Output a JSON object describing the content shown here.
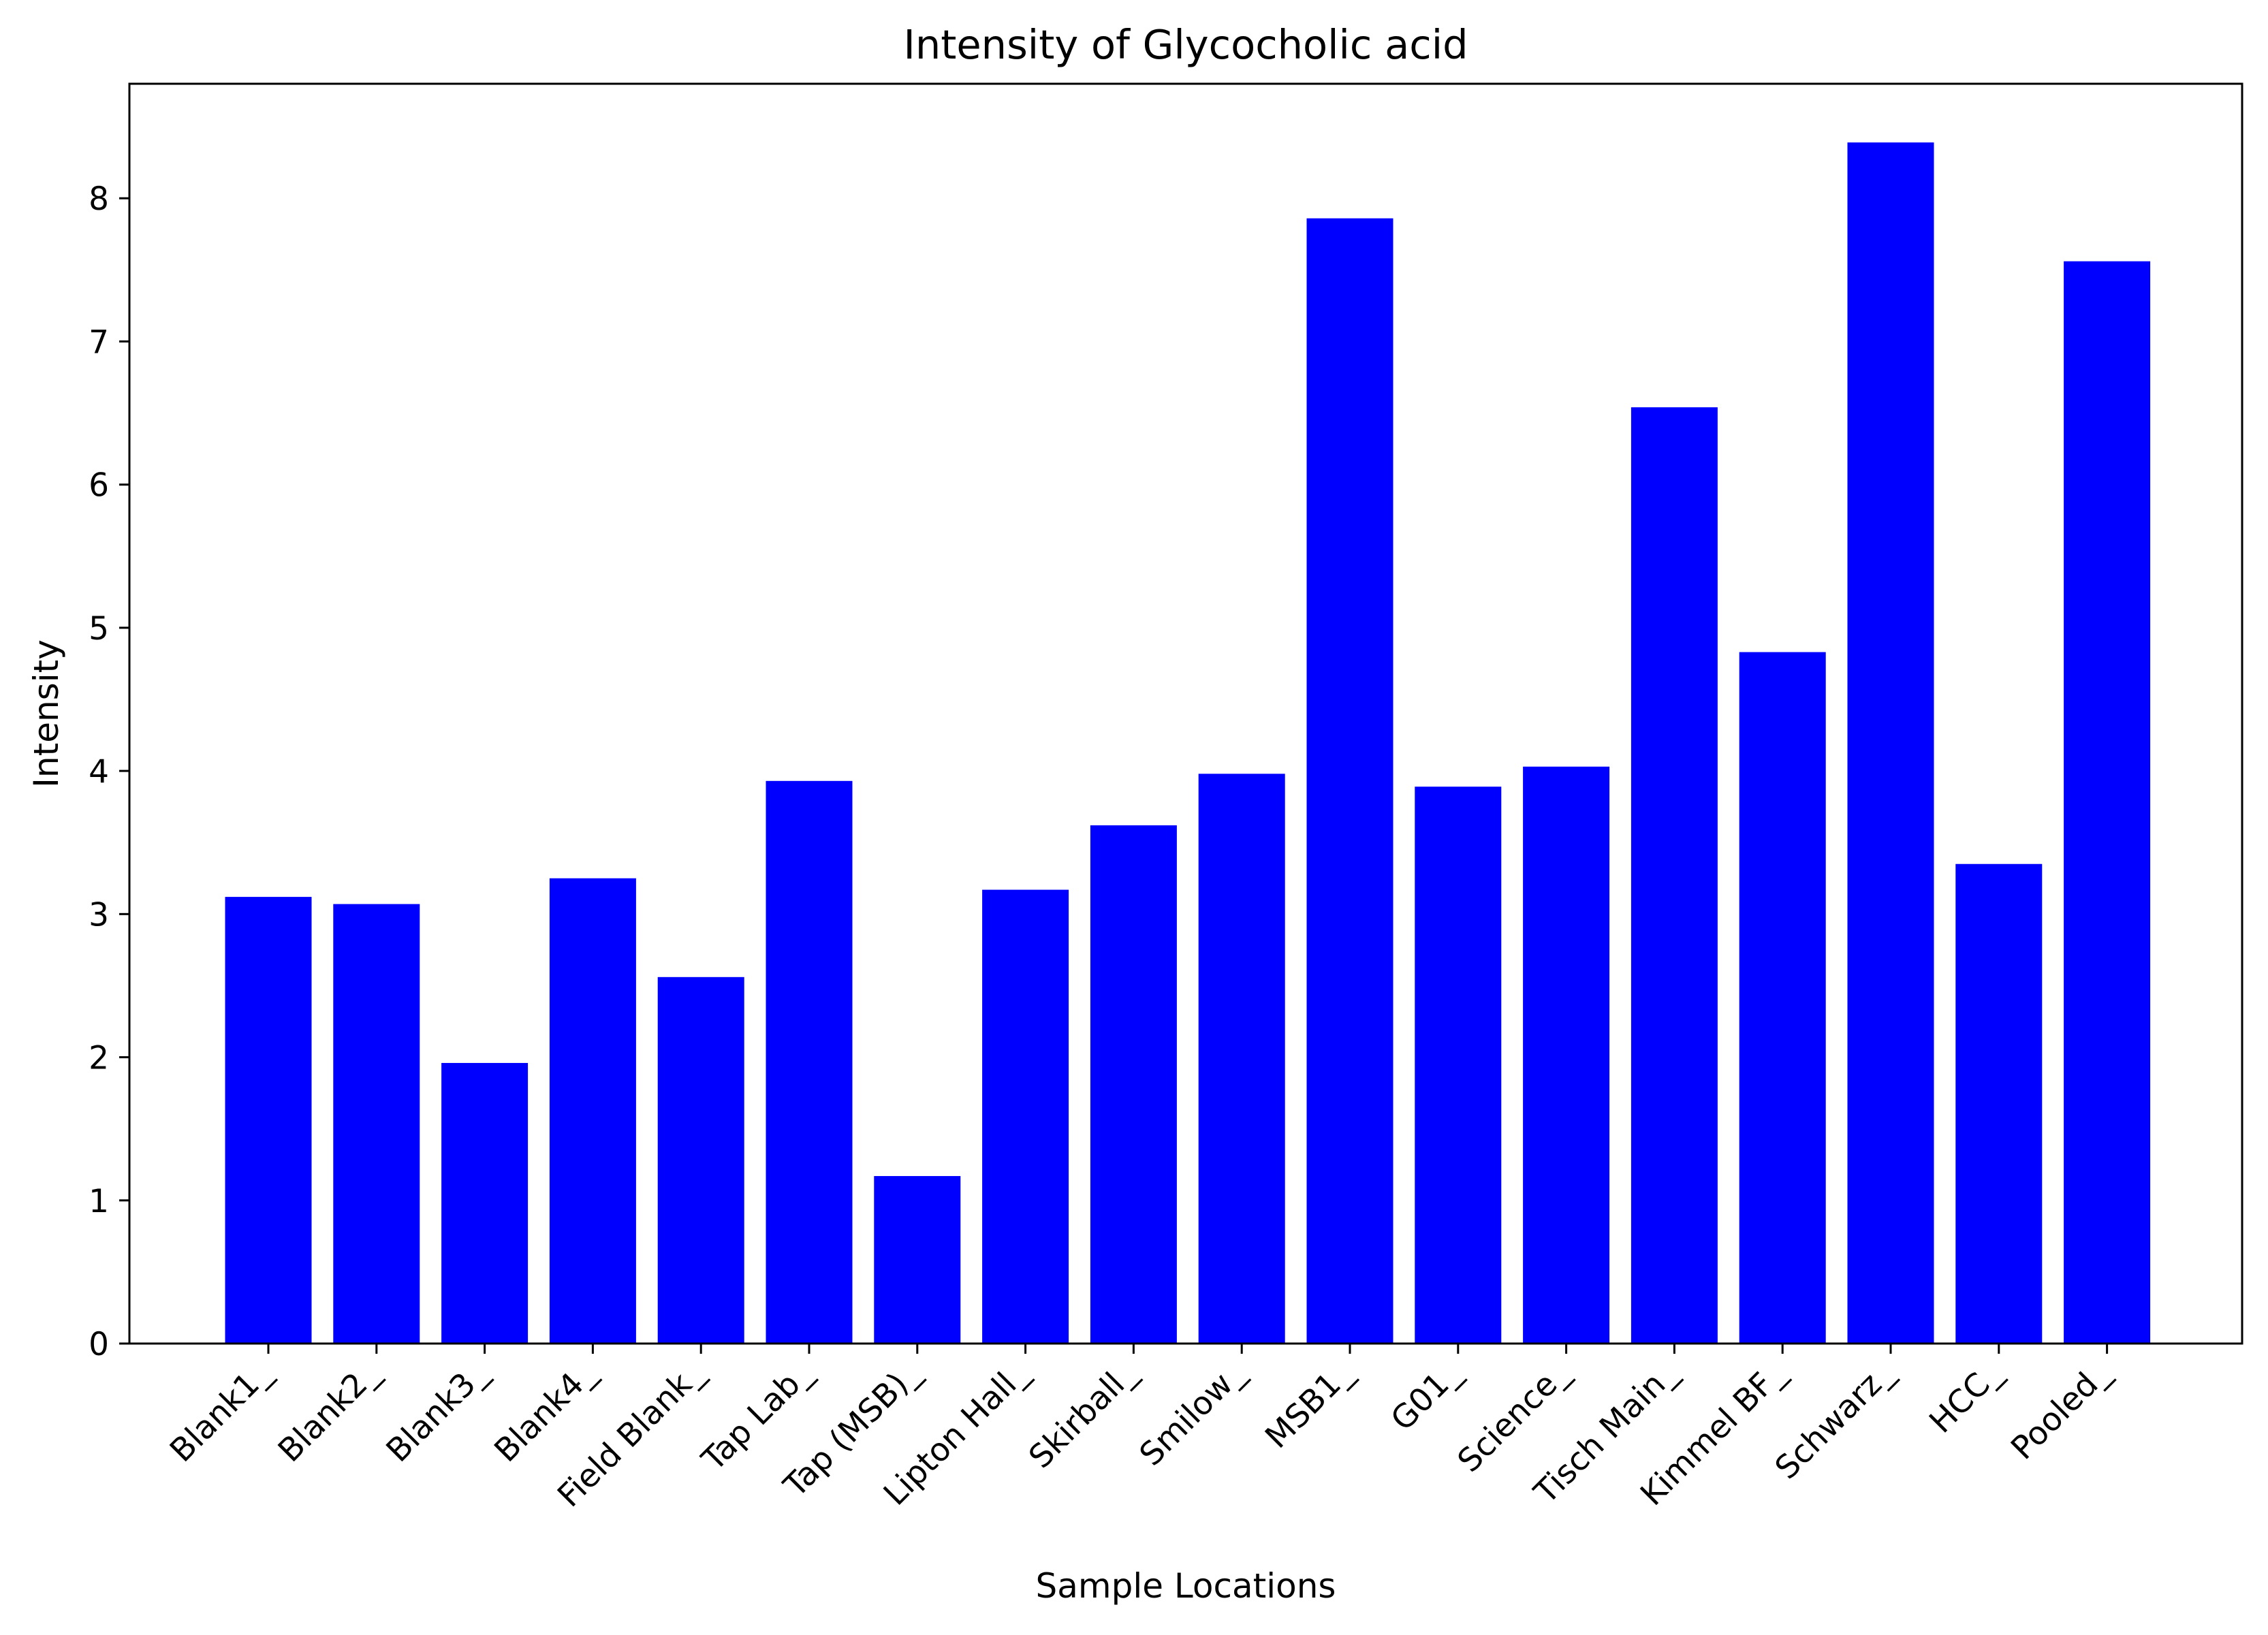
{
  "chart_data": {
    "type": "bar",
    "title": "Intensity of Glycocholic acid",
    "xlabel": "Sample Locations",
    "ylabel": "Intensity",
    "categories": [
      "Blank1_",
      "Blank2_",
      "Blank3_",
      "Blank4_",
      "Field Blank_",
      "Tap Lab_",
      "Tap (MSB)_",
      "Lipton Hall_",
      "Skirball_",
      "Smilow_",
      "MSB1_",
      "G01_",
      "Science_",
      "Tisch Main_",
      "Kimmel BF_",
      "Schwarz_",
      "HCC_",
      "Pooled_"
    ],
    "values": [
      3.12,
      3.07,
      1.96,
      3.25,
      2.56,
      3.93,
      1.17,
      3.17,
      3.62,
      3.98,
      7.86,
      3.89,
      4.03,
      6.54,
      4.83,
      8.39,
      3.35,
      7.56
    ],
    "ylim": [
      0,
      8.8
    ],
    "yticks": [
      0,
      1,
      2,
      3,
      4,
      5,
      6,
      7,
      8
    ],
    "bar_color": "#0000ff",
    "grid": false,
    "legend": "none"
  }
}
